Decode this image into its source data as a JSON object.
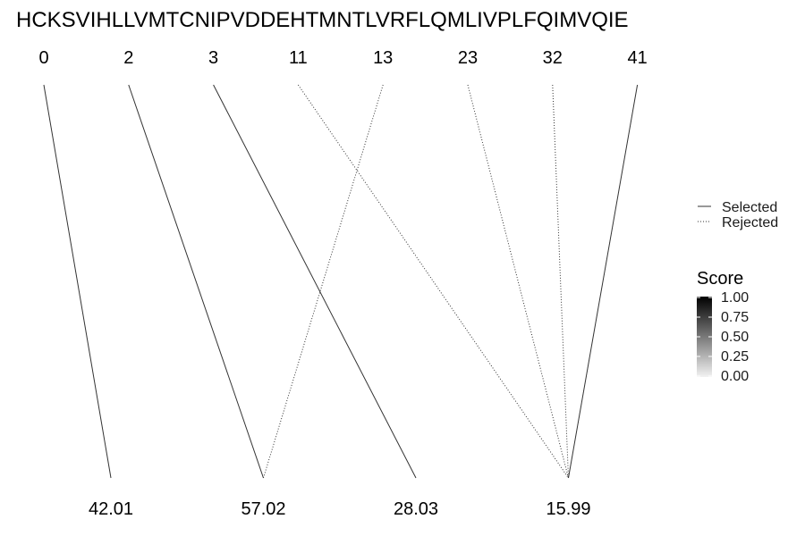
{
  "chart_data": {
    "type": "diagram",
    "sequence": "HCKSVIHLLVMTCNIPVDDEHTMNTLVRFLQMLIVPLFQIMVQIE",
    "positions": [
      "0",
      "2",
      "3",
      "11",
      "13",
      "23",
      "32",
      "41"
    ],
    "masses": [
      "42.01",
      "57.02",
      "28.03",
      "15.99"
    ],
    "connections": [
      {
        "position": "0",
        "mass": "42.01",
        "status": "Selected"
      },
      {
        "position": "2",
        "mass": "57.02",
        "status": "Selected"
      },
      {
        "position": "3",
        "mass": "28.03",
        "status": "Selected"
      },
      {
        "position": "11",
        "mass": "15.99",
        "status": "Rejected"
      },
      {
        "position": "13",
        "mass": "57.02",
        "status": "Rejected"
      },
      {
        "position": "23",
        "mass": "15.99",
        "status": "Rejected"
      },
      {
        "position": "32",
        "mass": "15.99",
        "status": "Rejected"
      },
      {
        "position": "41",
        "mass": "15.99",
        "status": "Selected"
      }
    ],
    "linetype_legend": [
      "Selected",
      "Rejected"
    ],
    "score_legend": {
      "title": "Score",
      "breaks": [
        "1.00",
        "0.75",
        "0.50",
        "0.25",
        "0.00"
      ],
      "low_color": "#f2f2f2",
      "high_color": "#000000"
    },
    "line_color": "#333333"
  }
}
